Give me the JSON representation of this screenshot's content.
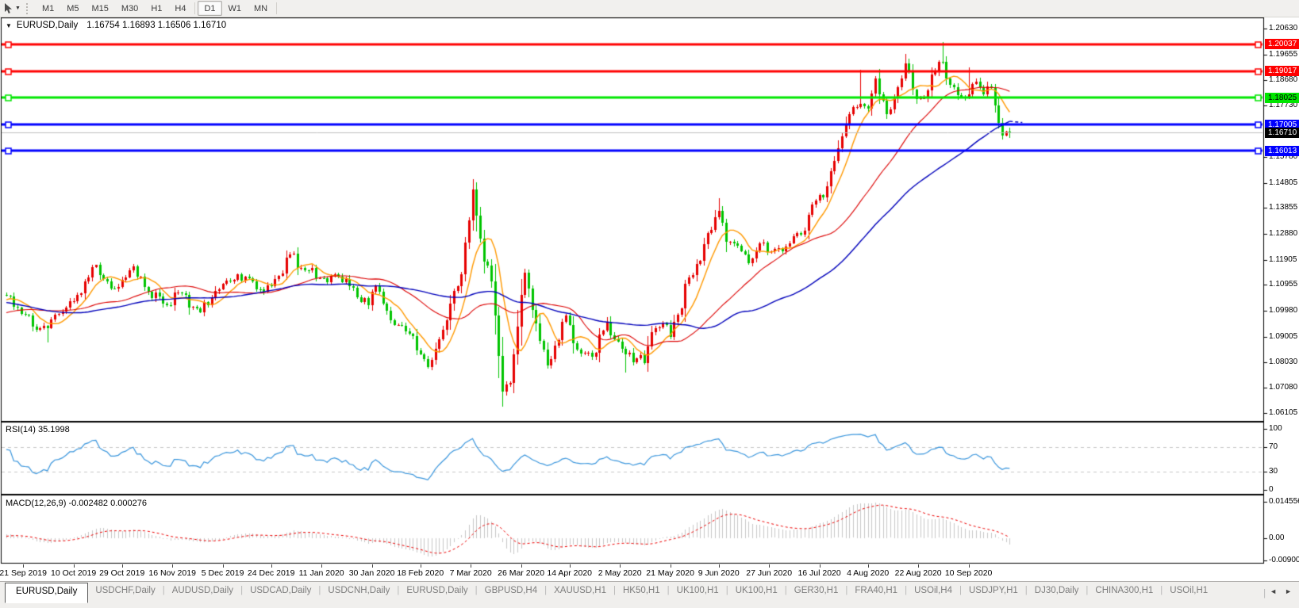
{
  "toolbar": {
    "timeframes": [
      {
        "label": "M1",
        "active": false
      },
      {
        "label": "M5",
        "active": false
      },
      {
        "label": "M15",
        "active": false
      },
      {
        "label": "M30",
        "active": false
      },
      {
        "label": "H1",
        "active": false
      },
      {
        "label": "H4",
        "active": false
      },
      {
        "label": "D1",
        "active": true
      },
      {
        "label": "W1",
        "active": false
      },
      {
        "label": "MN",
        "active": false
      }
    ]
  },
  "chart": {
    "symbol_title": "EURUSD,Daily",
    "ohlc_text": "1.16754 1.16893 1.16506 1.16710",
    "collapse_arrow": "▼"
  },
  "price_axis": {
    "ticks": [
      "1.20630",
      "1.19655",
      "1.18680",
      "1.17730",
      "1.15780",
      "1.14805",
      "1.13855",
      "1.12880",
      "1.11905",
      "1.10955",
      "1.09980",
      "1.09005",
      "1.08030",
      "1.07080",
      "1.06105"
    ]
  },
  "levels": [
    {
      "label": "1.20037",
      "price": 1.20037,
      "color": "#ff0000",
      "text_color": "#ffffff"
    },
    {
      "label": "1.19017",
      "price": 1.19017,
      "color": "#ff0000",
      "text_color": "#ffffff"
    },
    {
      "label": "1.18025",
      "price": 1.18025,
      "color": "#00e600",
      "text_color": "#000000"
    },
    {
      "label": "1.17005",
      "price": 1.17005,
      "color": "#0000ff",
      "text_color": "#ffffff"
    },
    {
      "label": "1.16013",
      "price": 1.16013,
      "color": "#0000ff",
      "text_color": "#ffffff"
    }
  ],
  "current_price": {
    "label": "1.16710",
    "value": 1.1671,
    "bg": "#000000",
    "fg": "#ffffff",
    "line_color": "#c0c0c0"
  },
  "rsi": {
    "label": "RSI(14) 35.1998",
    "value": 35.1998,
    "axis": [
      "100",
      "70",
      "30",
      "0"
    ],
    "levels": [
      70,
      30
    ],
    "line_color": "#3a96dd",
    "level_color": "#c8c8c8"
  },
  "macd": {
    "label": "MACD(12,26,9) -0.002482 0.000276",
    "axis": [
      "0.014556",
      "0.00",
      "-0.009001"
    ],
    "scale_max": 0.014556,
    "scale_min": -0.009001,
    "current_main": -0.002482,
    "current_signal": 0.000276,
    "hist_color": "#c8c8c8",
    "signal_color": "#ee0000"
  },
  "x_axis": {
    "ticks": [
      {
        "label": "21 Sep 2019",
        "bar": 4.5
      },
      {
        "label": "10 Oct 2019",
        "bar": 18
      },
      {
        "label": "29 Oct 2019",
        "bar": 31
      },
      {
        "label": "16 Nov 2019",
        "bar": 44.5
      },
      {
        "label": "5 Dec 2019",
        "bar": 58
      },
      {
        "label": "24 Dec 2019",
        "bar": 71
      },
      {
        "label": "11 Jan 2020",
        "bar": 84.5
      },
      {
        "label": "30 Jan 2020",
        "bar": 98
      },
      {
        "label": "18 Feb 2020",
        "bar": 111
      },
      {
        "label": "7 Mar 2020",
        "bar": 124.5
      },
      {
        "label": "26 Mar 2020",
        "bar": 138
      },
      {
        "label": "14 Apr 2020",
        "bar": 151
      },
      {
        "label": "2 May 2020",
        "bar": 164.5
      },
      {
        "label": "21 May 2020",
        "bar": 178
      },
      {
        "label": "9 Jun 2020",
        "bar": 191
      },
      {
        "label": "27 Jun 2020",
        "bar": 204.5
      },
      {
        "label": "16 Jul 2020",
        "bar": 218
      },
      {
        "label": "4 Aug 2020",
        "bar": 231
      },
      {
        "label": "22 Aug 2020",
        "bar": 244.5
      },
      {
        "label": "10 Sep 2020",
        "bar": 258
      }
    ]
  },
  "tabs": [
    {
      "label": "EURUSD,Daily",
      "active": true
    },
    {
      "label": "USDCHF,Daily",
      "active": false
    },
    {
      "label": "AUDUSD,Daily",
      "active": false
    },
    {
      "label": "USDCAD,Daily",
      "active": false
    },
    {
      "label": "USDCNH,Daily",
      "active": false
    },
    {
      "label": "EURUSD,Daily",
      "active": false
    },
    {
      "label": "GBPUSD,H4",
      "active": false
    },
    {
      "label": "XAUUSD,H1",
      "active": false
    },
    {
      "label": "HK50,H1",
      "active": false
    },
    {
      "label": "UK100,H1",
      "active": false
    },
    {
      "label": "UK100,H1",
      "active": false
    },
    {
      "label": "GER30,H1",
      "active": false
    },
    {
      "label": "FRA40,H1",
      "active": false
    },
    {
      "label": "USOil,H4",
      "active": false
    },
    {
      "label": "USDJPY,H1",
      "active": false
    },
    {
      "label": "DJ30,Daily",
      "active": false
    },
    {
      "label": "CHINA300,H1",
      "active": false
    },
    {
      "label": "USOil,H1",
      "active": false
    }
  ],
  "tab_scroll": {
    "left": "◄",
    "right": "►"
  },
  "chart_data": {
    "type": "candlestick",
    "symbol": "EURUSD",
    "timeframe": "Daily",
    "ohlc_current": {
      "open": 1.16754,
      "high": 1.16893,
      "low": 1.16506,
      "close": 1.1671
    },
    "bars_total": 270,
    "ylim": [
      1.0585,
      1.2102
    ],
    "grid": false,
    "colors": {
      "up": "#e60000",
      "down": "#00c400",
      "ma_fast": "#ff9900",
      "ma_mid": "#dd0000",
      "ma_slow": "#0000bb"
    },
    "ma_periods": [
      8,
      30,
      60
    ],
    "anchors": [
      [
        0,
        1.1055
      ],
      [
        3,
        1.101
      ],
      [
        8,
        1.0926
      ],
      [
        11,
        1.0932
      ],
      [
        14,
        1.0985
      ],
      [
        18,
        1.1035
      ],
      [
        22,
        1.1125
      ],
      [
        24,
        1.117
      ],
      [
        28,
        1.1082
      ],
      [
        33,
        1.115
      ],
      [
        34,
        1.1166
      ],
      [
        38,
        1.107
      ],
      [
        43,
        1.102
      ],
      [
        46,
        1.1068
      ],
      [
        51,
        1.1008
      ],
      [
        54,
        1.1018
      ],
      [
        57,
        1.108
      ],
      [
        62,
        1.1135
      ],
      [
        65,
        1.112
      ],
      [
        68,
        1.108
      ],
      [
        71,
        1.109
      ],
      [
        76,
        1.121
      ],
      [
        79,
        1.116
      ],
      [
        84,
        1.1122
      ],
      [
        88,
        1.1135
      ],
      [
        92,
        1.109
      ],
      [
        97,
        1.102
      ],
      [
        99,
        1.1093
      ],
      [
        104,
        1.0945
      ],
      [
        108,
        1.0912
      ],
      [
        113,
        1.0786
      ],
      [
        116,
        1.089
      ],
      [
        119,
        1.1026
      ],
      [
        122,
        1.1135
      ],
      [
        125,
        1.1456
      ],
      [
        127,
        1.127
      ],
      [
        128,
        1.1184
      ],
      [
        130,
        1.1108
      ],
      [
        133,
        1.0692
      ],
      [
        135,
        1.0727
      ],
      [
        138,
        1.1059
      ],
      [
        139,
        1.1141
      ],
      [
        142,
        1.095
      ],
      [
        145,
        1.0791
      ],
      [
        150,
        1.098
      ],
      [
        152,
        1.0875
      ],
      [
        157,
        1.0823
      ],
      [
        161,
        1.0955
      ],
      [
        163,
        1.089
      ],
      [
        166,
        1.0834
      ],
      [
        169,
        1.0818
      ],
      [
        171,
        1.0801
      ],
      [
        173,
        1.0916
      ],
      [
        176,
        1.0949
      ],
      [
        178,
        1.09
      ],
      [
        181,
        1.1006
      ],
      [
        182,
        1.1101
      ],
      [
        185,
        1.1173
      ],
      [
        187,
        1.125
      ],
      [
        188,
        1.129
      ],
      [
        191,
        1.1375
      ],
      [
        193,
        1.1258
      ],
      [
        196,
        1.1244
      ],
      [
        199,
        1.1177
      ],
      [
        202,
        1.1251
      ],
      [
        204,
        1.1219
      ],
      [
        207,
        1.1234
      ],
      [
        209,
        1.1239
      ],
      [
        214,
        1.13
      ],
      [
        216,
        1.14
      ],
      [
        219,
        1.1427
      ],
      [
        221,
        1.1526
      ],
      [
        224,
        1.1656
      ],
      [
        226,
        1.1739
      ],
      [
        229,
        1.1778
      ],
      [
        231,
        1.1762
      ],
      [
        233,
        1.1876
      ],
      [
        236,
        1.1739
      ],
      [
        239,
        1.1842
      ],
      [
        241,
        1.1932
      ],
      [
        244,
        1.1797
      ],
      [
        247,
        1.1831
      ],
      [
        249,
        1.1903
      ],
      [
        251,
        1.1937
      ],
      [
        253,
        1.1851
      ],
      [
        255,
        1.1813
      ],
      [
        257,
        1.1802
      ],
      [
        258,
        1.1815
      ],
      [
        260,
        1.1864
      ],
      [
        262,
        1.1815
      ],
      [
        263,
        1.1845
      ],
      [
        264,
        1.184
      ],
      [
        265,
        1.1772
      ],
      [
        266,
        1.1707
      ],
      [
        267,
        1.1659
      ],
      [
        268,
        1.1674
      ],
      [
        269,
        1.1671
      ]
    ],
    "extremes": [
      {
        "b": 11,
        "l": 1.0879
      },
      {
        "b": 113,
        "l": 1.0778
      },
      {
        "b": 125,
        "h": 1.1495
      },
      {
        "b": 133,
        "l": 1.0636
      },
      {
        "b": 166,
        "l": 1.0766
      },
      {
        "b": 191,
        "h": 1.1422
      },
      {
        "b": 229,
        "h": 1.1909
      },
      {
        "b": 241,
        "h": 1.1966
      },
      {
        "b": 251,
        "h": 1.2011
      },
      {
        "b": 258,
        "h": 1.1917
      },
      {
        "b": 269,
        "o": 1.16754,
        "h": 1.16893,
        "l": 1.16506,
        "c": 1.1671
      }
    ]
  }
}
